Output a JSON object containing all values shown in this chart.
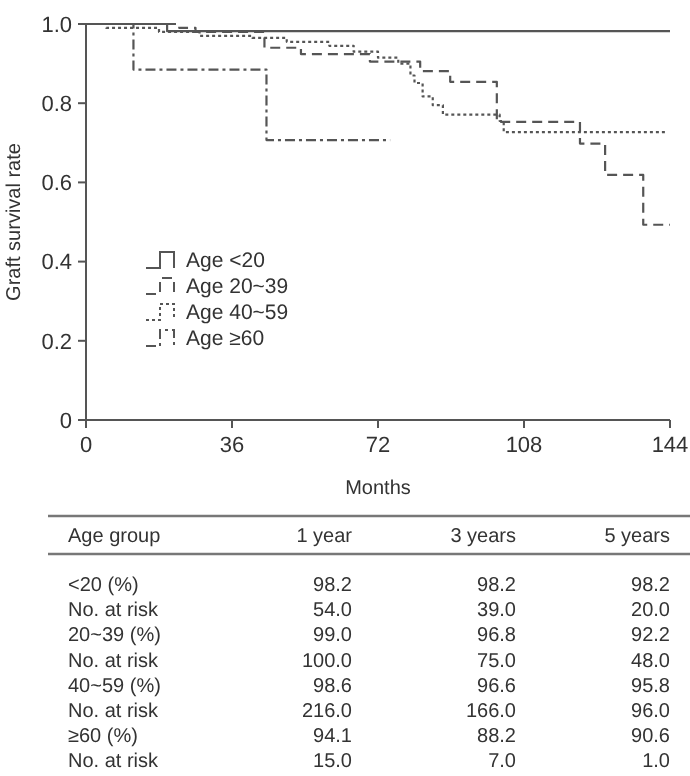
{
  "chart_data": [
    {
      "type": "step",
      "xlabel": "Months",
      "ylabel": "Graft survival rate",
      "xlim": [
        0,
        144
      ],
      "xticks": [
        0,
        36,
        72,
        108,
        144
      ],
      "ylim": [
        0,
        1
      ],
      "yticks": [
        {
          "value": 0,
          "label": "0"
        },
        0.2,
        0.4,
        0.6,
        0.8,
        {
          "value": 1,
          "label": "1.0"
        }
      ],
      "grid": false,
      "legend": "bottom left",
      "series": [
        {
          "name": "Age <20",
          "color": "#555555",
          "line_style": "solid",
          "x": [
            0,
            20,
            144
          ],
          "values": [
            1,
            0.982,
            0.982
          ]
        },
        {
          "name": "Age 20~39",
          "color": "#555555",
          "line_style": "dashed",
          "x": [
            0,
            23,
            27,
            44,
            53,
            70,
            82.4,
            89.8,
            101.3,
            121.8,
            128,
            137.4,
            144
          ],
          "values": [
            1,
            0.99,
            0.98,
            0.94,
            0.924,
            0.905,
            0.881,
            0.854,
            0.753,
            0.698,
            0.619,
            0.493,
            0.493
          ]
        },
        {
          "name": "Age 40~59",
          "color": "#555555",
          "line_style": "dotted",
          "x": [
            0,
            5,
            18,
            28,
            41,
            49.5,
            60,
            66,
            72,
            77,
            80,
            81,
            83,
            85.5,
            88,
            102,
            103,
            143
          ],
          "values": [
            1,
            0.99,
            0.98,
            0.97,
            0.965,
            0.955,
            0.945,
            0.93,
            0.915,
            0.9,
            0.87,
            0.851,
            0.817,
            0.795,
            0.771,
            0.755,
            0.727,
            0.727
          ]
        },
        {
          "name": "Age ≥60",
          "color": "#555555",
          "line_style": "dashdot",
          "x": [
            0,
            11.7,
            44.5,
            75
          ],
          "values": [
            1,
            0.885,
            0.707,
            0.707
          ]
        }
      ]
    },
    {
      "type": "other",
      "ylabel": "Age group",
      "categories": [
        "1 year",
        "3 years",
        "5 years"
      ],
      "y_categories": [
        "<20 (%)",
        "No. at risk",
        "20~39 (%)",
        "No. at risk",
        "40~59 (%)",
        "No. at risk",
        "≥60 (%)",
        "No. at risk"
      ],
      "cell_labels": [
        [
          "98.2",
          "98.2",
          "98.2"
        ],
        [
          "54.0",
          "39.0",
          "20.0"
        ],
        [
          "99.0",
          "96.8",
          "92.2"
        ],
        [
          "100.0",
          "75.0",
          "48.0"
        ],
        [
          "98.6",
          "96.6",
          "95.8"
        ],
        [
          "216.0",
          "166.0",
          "96.0"
        ],
        [
          "94.1",
          "88.2",
          "90.6"
        ],
        [
          "15.0",
          "7.0",
          "1.0"
        ]
      ]
    }
  ]
}
